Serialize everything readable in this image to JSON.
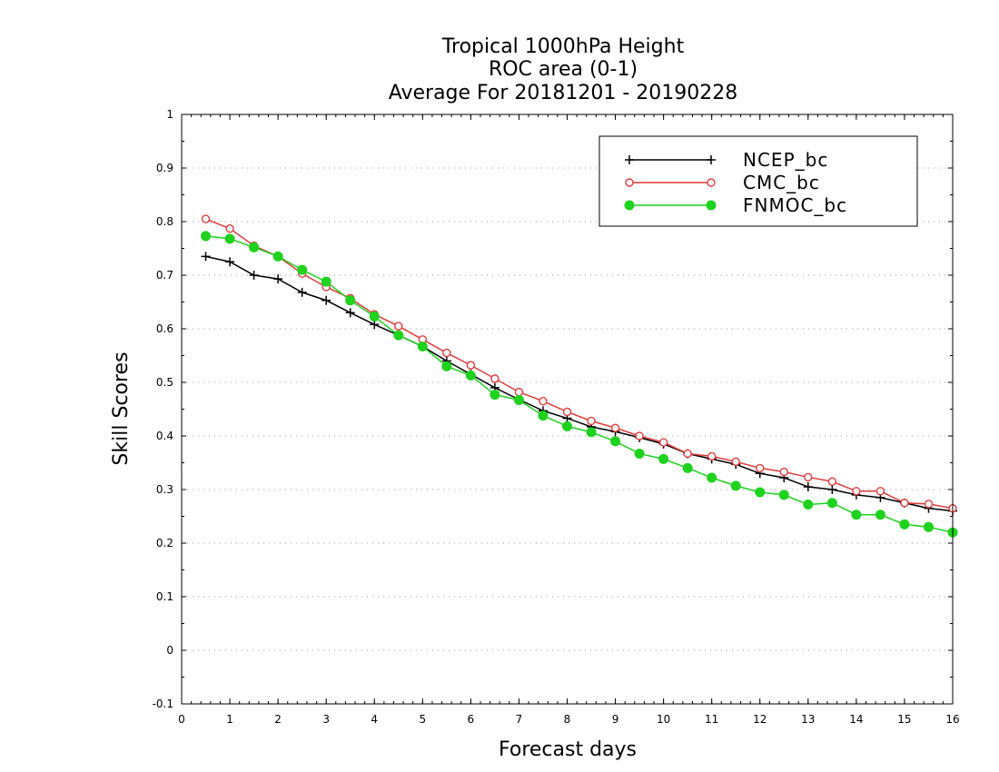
{
  "chart_data": {
    "type": "line",
    "title": [
      "Tropical 1000hPa Height",
      "ROC area (0-1)",
      "Average For 20181201 - 20190228"
    ],
    "xlabel": "Forecast days",
    "ylabel": "Skill Scores",
    "xlim": [
      0,
      16
    ],
    "ylim": [
      -0.1,
      1
    ],
    "xticks": [
      0,
      1,
      2,
      3,
      4,
      5,
      6,
      7,
      8,
      9,
      10,
      11,
      12,
      13,
      14,
      15,
      16
    ],
    "yticks": [
      -0.1,
      0,
      0.1,
      0.2,
      0.3,
      0.4,
      0.5,
      0.6,
      0.7,
      0.8,
      0.9,
      1
    ],
    "yticklabels": [
      "-0.1",
      "0",
      "0.1",
      "0.2",
      "0.3",
      "0.4",
      "0.5",
      "0.6",
      "0.7",
      "0.8",
      "0.9",
      "1"
    ],
    "grid": "horizontal-dotted",
    "legend_position": "top-right",
    "x": [
      0.5,
      1,
      1.5,
      2,
      2.5,
      3,
      3.5,
      4,
      4.5,
      5,
      5.5,
      6,
      6.5,
      7,
      7.5,
      8,
      8.5,
      9,
      9.5,
      10,
      10.5,
      11,
      11.5,
      12,
      12.5,
      13,
      13.5,
      14,
      14.5,
      15,
      15.5,
      16
    ],
    "series": [
      {
        "name": "NCEP_bc",
        "color": "#000000",
        "marker": "plus",
        "values": [
          0.735,
          0.725,
          0.7,
          0.693,
          0.668,
          0.653,
          0.63,
          0.608,
          0.588,
          0.567,
          0.54,
          0.515,
          0.49,
          0.468,
          0.447,
          0.433,
          0.417,
          0.408,
          0.397,
          0.385,
          0.367,
          0.357,
          0.347,
          0.33,
          0.322,
          0.305,
          0.3,
          0.29,
          0.285,
          0.275,
          0.265,
          0.26
        ]
      },
      {
        "name": "CMC_bc",
        "color": "#e03c3c",
        "marker": "open-circle",
        "values": [
          0.805,
          0.787,
          0.755,
          0.735,
          0.703,
          0.678,
          0.657,
          0.627,
          0.605,
          0.58,
          0.555,
          0.532,
          0.507,
          0.482,
          0.465,
          0.445,
          0.428,
          0.415,
          0.4,
          0.388,
          0.367,
          0.362,
          0.352,
          0.34,
          0.333,
          0.323,
          0.315,
          0.297,
          0.297,
          0.275,
          0.273,
          0.265
        ]
      },
      {
        "name": "FNMOC_bc",
        "color": "#1ed21e",
        "marker": "filled-circle",
        "values": [
          0.773,
          0.768,
          0.752,
          0.735,
          0.71,
          0.688,
          0.653,
          0.623,
          0.588,
          0.567,
          0.53,
          0.513,
          0.477,
          0.467,
          0.438,
          0.418,
          0.407,
          0.39,
          0.367,
          0.357,
          0.34,
          0.322,
          0.307,
          0.295,
          0.29,
          0.272,
          0.275,
          0.253,
          0.253,
          0.235,
          0.23,
          0.22
        ]
      }
    ]
  }
}
